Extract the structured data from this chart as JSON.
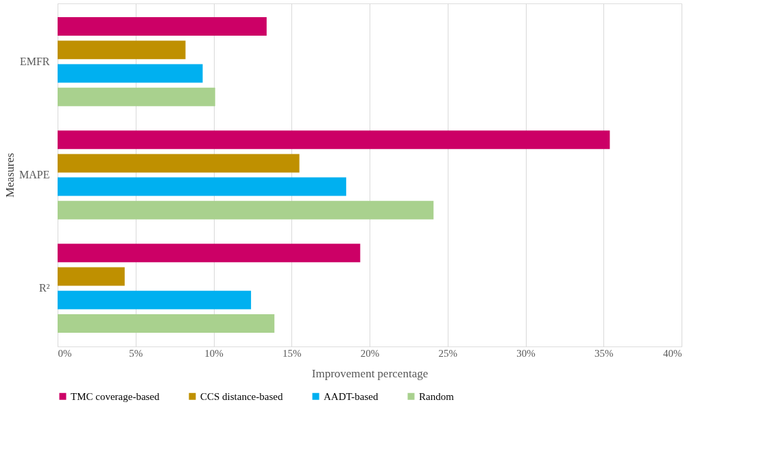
{
  "chart_data": {
    "type": "bar",
    "orientation": "horizontal",
    "xlabel": "Improvement percentage",
    "ylabel": "Measures",
    "categories": [
      "EMFR",
      "MAPE",
      "R²"
    ],
    "series": [
      {
        "name": "TMC coverage-based",
        "color": "#cc0066",
        "values": [
          13.4,
          35.4,
          19.4
        ]
      },
      {
        "name": "CCS distance-based",
        "color": "#bf9000",
        "values": [
          8.2,
          15.5,
          4.3
        ]
      },
      {
        "name": "AADT-based",
        "color": "#00b0f0",
        "values": [
          9.3,
          18.5,
          12.4
        ]
      },
      {
        "name": "Random",
        "color": "#a9d18e",
        "values": [
          10.1,
          24.1,
          13.9
        ]
      }
    ],
    "xlim": [
      0,
      40
    ],
    "xticks": [
      {
        "value": 0,
        "label": "0%"
      },
      {
        "value": 5,
        "label": "5%"
      },
      {
        "value": 10,
        "label": "10%"
      },
      {
        "value": 15,
        "label": "15%"
      },
      {
        "value": 20,
        "label": "20%"
      },
      {
        "value": 25,
        "label": "25%"
      },
      {
        "value": 30,
        "label": "30%"
      },
      {
        "value": 35,
        "label": "35%"
      },
      {
        "value": 40,
        "label": "40%"
      }
    ],
    "grid": "x",
    "legend": "bottom"
  }
}
